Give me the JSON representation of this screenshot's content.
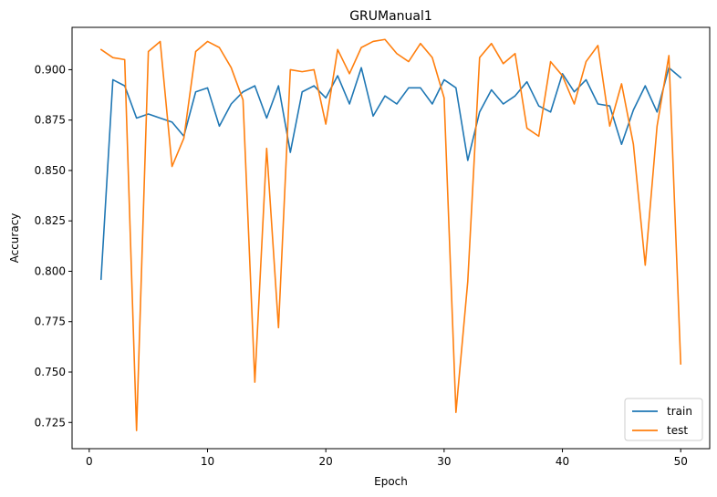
{
  "chart_data": {
    "type": "line",
    "title": "GRUManual1",
    "xlabel": "Epoch",
    "ylabel": "Accuracy",
    "xlim": [
      -1.45,
      52.45
    ],
    "ylim": [
      0.712,
      0.921
    ],
    "xticks": [
      0,
      10,
      20,
      30,
      40,
      50
    ],
    "yticks": [
      0.725,
      0.75,
      0.775,
      0.8,
      0.825,
      0.85,
      0.875,
      0.9
    ],
    "grid": false,
    "legend_position": "lower-right",
    "x": [
      1,
      2,
      3,
      4,
      5,
      6,
      7,
      8,
      9,
      10,
      11,
      12,
      13,
      14,
      15,
      16,
      17,
      18,
      19,
      20,
      21,
      22,
      23,
      24,
      25,
      26,
      27,
      28,
      29,
      30,
      31,
      32,
      33,
      34,
      35,
      36,
      37,
      38,
      39,
      40,
      41,
      42,
      43,
      44,
      45,
      46,
      47,
      48,
      49,
      50
    ],
    "series": [
      {
        "name": "train",
        "color": "#1f77b4",
        "values": [
          0.796,
          0.895,
          0.892,
          0.876,
          0.878,
          0.876,
          0.874,
          0.867,
          0.889,
          0.891,
          0.872,
          0.883,
          0.889,
          0.892,
          0.876,
          0.892,
          0.859,
          0.889,
          0.892,
          0.886,
          0.897,
          0.883,
          0.901,
          0.877,
          0.887,
          0.883,
          0.891,
          0.891,
          0.883,
          0.895,
          0.891,
          0.855,
          0.879,
          0.89,
          0.883,
          0.887,
          0.894,
          0.882,
          0.879,
          0.898,
          0.889,
          0.895,
          0.883,
          0.882,
          0.863,
          0.88,
          0.892,
          0.879,
          0.901,
          0.896
        ]
      },
      {
        "name": "test",
        "color": "#ff7f0e",
        "values": [
          0.91,
          0.906,
          0.905,
          0.721,
          0.909,
          0.914,
          0.852,
          0.866,
          0.909,
          0.914,
          0.911,
          0.901,
          0.885,
          0.745,
          0.861,
          0.772,
          0.9,
          0.899,
          0.9,
          0.873,
          0.91,
          0.898,
          0.911,
          0.914,
          0.915,
          0.908,
          0.904,
          0.913,
          0.906,
          0.886,
          0.73,
          0.795,
          0.906,
          0.913,
          0.903,
          0.908,
          0.871,
          0.867,
          0.904,
          0.897,
          0.883,
          0.904,
          0.912,
          0.872,
          0.893,
          0.863,
          0.803,
          0.872,
          0.907,
          0.754
        ]
      }
    ]
  }
}
